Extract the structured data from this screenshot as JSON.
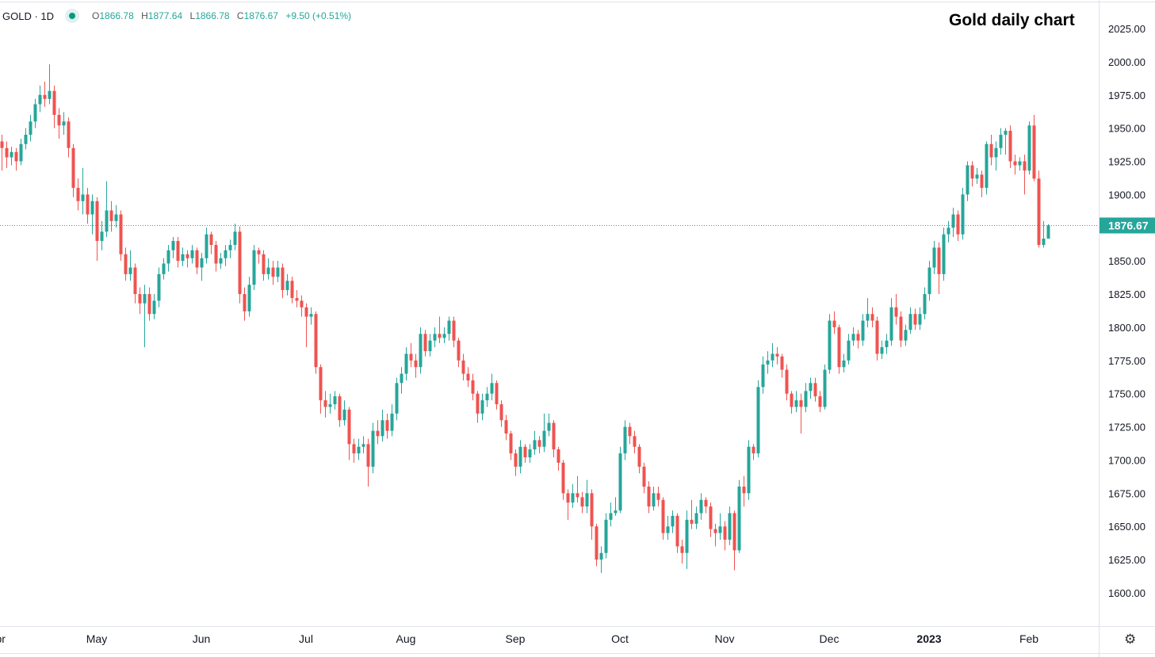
{
  "legend": {
    "symbol": "GOLD · 1D",
    "open": "1866.78",
    "high": "1877.64",
    "low": "1866.78",
    "close": "1876.67",
    "change": "+9.50 (+0.51%)",
    "open_label": "O",
    "high_label": "H",
    "low_label": "L",
    "close_label": "C"
  },
  "title": "Gold daily chart",
  "settings_icon": "gear-icon",
  "colors": {
    "up": "#26a69a",
    "down": "#ef5350",
    "price_line": "#26a69a"
  },
  "chart_data": {
    "type": "candlestick",
    "title": "Gold daily chart",
    "ylim": [
      1580,
      2045
    ],
    "y_ticks": [
      1600,
      1625,
      1650,
      1675,
      1700,
      1725,
      1750,
      1775,
      1800,
      1825,
      1850,
      1875,
      1900,
      1925,
      1950,
      1975,
      2000,
      2025
    ],
    "x_ticks": [
      {
        "label": "Apr",
        "index": -1
      },
      {
        "label": "May",
        "index": 20
      },
      {
        "label": "Jun",
        "index": 42
      },
      {
        "label": "Jul",
        "index": 64
      },
      {
        "label": "Aug",
        "index": 85
      },
      {
        "label": "Sep",
        "index": 108
      },
      {
        "label": "Oct",
        "index": 130
      },
      {
        "label": "Nov",
        "index": 152
      },
      {
        "label": "Dec",
        "index": 174
      },
      {
        "label": "2023",
        "index": 195,
        "bold": true
      },
      {
        "label": "Feb",
        "index": 216
      }
    ],
    "last_price": 1876.67,
    "last_price_label": "1876.67",
    "grid": false,
    "candles_ohlc": [
      [
        1940,
        1945,
        1918,
        1935
      ],
      [
        1935,
        1940,
        1920,
        1928
      ],
      [
        1928,
        1936,
        1922,
        1932
      ],
      [
        1932,
        1935,
        1918,
        1925
      ],
      [
        1925,
        1942,
        1922,
        1938
      ],
      [
        1938,
        1950,
        1934,
        1945
      ],
      [
        1945,
        1960,
        1940,
        1955
      ],
      [
        1955,
        1972,
        1950,
        1968
      ],
      [
        1968,
        1982,
        1962,
        1975
      ],
      [
        1975,
        1985,
        1966,
        1972
      ],
      [
        1972,
        1998,
        1968,
        1978
      ],
      [
        1978,
        1982,
        1950,
        1960
      ],
      [
        1960,
        1965,
        1942,
        1952
      ],
      [
        1952,
        1962,
        1945,
        1955
      ],
      [
        1955,
        1958,
        1928,
        1935
      ],
      [
        1935,
        1938,
        1898,
        1905
      ],
      [
        1905,
        1912,
        1888,
        1895
      ],
      [
        1895,
        1920,
        1885,
        1900
      ],
      [
        1900,
        1905,
        1878,
        1885
      ],
      [
        1885,
        1900,
        1870,
        1895
      ],
      [
        1895,
        1898,
        1850,
        1865
      ],
      [
        1865,
        1880,
        1858,
        1872
      ],
      [
        1872,
        1910,
        1868,
        1888
      ],
      [
        1888,
        1895,
        1872,
        1880
      ],
      [
        1880,
        1892,
        1875,
        1885
      ],
      [
        1885,
        1888,
        1850,
        1855
      ],
      [
        1855,
        1860,
        1835,
        1840
      ],
      [
        1840,
        1858,
        1835,
        1845
      ],
      [
        1845,
        1848,
        1818,
        1825
      ],
      [
        1825,
        1830,
        1810,
        1818
      ],
      [
        1818,
        1832,
        1785,
        1825
      ],
      [
        1825,
        1830,
        1805,
        1810
      ],
      [
        1810,
        1825,
        1806,
        1820
      ],
      [
        1820,
        1845,
        1815,
        1840
      ],
      [
        1840,
        1852,
        1836,
        1848
      ],
      [
        1848,
        1862,
        1842,
        1858
      ],
      [
        1858,
        1868,
        1852,
        1865
      ],
      [
        1865,
        1868,
        1845,
        1850
      ],
      [
        1850,
        1860,
        1846,
        1855
      ],
      [
        1855,
        1858,
        1845,
        1852
      ],
      [
        1852,
        1862,
        1848,
        1858
      ],
      [
        1858,
        1860,
        1840,
        1845
      ],
      [
        1845,
        1856,
        1835,
        1852
      ],
      [
        1852,
        1875,
        1848,
        1870
      ],
      [
        1870,
        1872,
        1855,
        1862
      ],
      [
        1862,
        1865,
        1842,
        1848
      ],
      [
        1848,
        1856,
        1844,
        1852
      ],
      [
        1852,
        1862,
        1846,
        1858
      ],
      [
        1858,
        1866,
        1852,
        1862
      ],
      [
        1862,
        1878,
        1858,
        1872
      ],
      [
        1872,
        1876,
        1818,
        1825
      ],
      [
        1825,
        1830,
        1805,
        1812
      ],
      [
        1812,
        1838,
        1808,
        1832
      ],
      [
        1832,
        1862,
        1828,
        1858
      ],
      [
        1858,
        1860,
        1848,
        1855
      ],
      [
        1855,
        1858,
        1835,
        1840
      ],
      [
        1840,
        1852,
        1836,
        1845
      ],
      [
        1845,
        1850,
        1832,
        1838
      ],
      [
        1838,
        1850,
        1834,
        1845
      ],
      [
        1845,
        1848,
        1822,
        1828
      ],
      [
        1828,
        1840,
        1824,
        1835
      ],
      [
        1835,
        1838,
        1818,
        1822
      ],
      [
        1822,
        1828,
        1815,
        1820
      ],
      [
        1820,
        1824,
        1808,
        1815
      ],
      [
        1815,
        1818,
        1785,
        1808
      ],
      [
        1808,
        1815,
        1802,
        1810
      ],
      [
        1810,
        1812,
        1765,
        1770
      ],
      [
        1770,
        1772,
        1735,
        1745
      ],
      [
        1745,
        1752,
        1732,
        1740
      ],
      [
        1740,
        1750,
        1735,
        1742
      ],
      [
        1742,
        1752,
        1738,
        1748
      ],
      [
        1748,
        1750,
        1725,
        1730
      ],
      [
        1730,
        1745,
        1726,
        1738
      ],
      [
        1738,
        1740,
        1700,
        1712
      ],
      [
        1712,
        1716,
        1698,
        1705
      ],
      [
        1705,
        1716,
        1700,
        1710
      ],
      [
        1710,
        1718,
        1705,
        1712
      ],
      [
        1712,
        1716,
        1680,
        1695
      ],
      [
        1695,
        1728,
        1690,
        1722
      ],
      [
        1722,
        1730,
        1712,
        1718
      ],
      [
        1718,
        1738,
        1714,
        1730
      ],
      [
        1730,
        1735,
        1716,
        1722
      ],
      [
        1722,
        1742,
        1718,
        1735
      ],
      [
        1735,
        1762,
        1730,
        1758
      ],
      [
        1758,
        1770,
        1750,
        1765
      ],
      [
        1765,
        1785,
        1760,
        1780
      ],
      [
        1780,
        1788,
        1770,
        1775
      ],
      [
        1775,
        1780,
        1762,
        1770
      ],
      [
        1770,
        1800,
        1765,
        1795
      ],
      [
        1795,
        1798,
        1778,
        1782
      ],
      [
        1782,
        1795,
        1778,
        1790
      ],
      [
        1790,
        1800,
        1785,
        1795
      ],
      [
        1795,
        1808,
        1788,
        1792
      ],
      [
        1792,
        1800,
        1788,
        1795
      ],
      [
        1795,
        1808,
        1790,
        1805
      ],
      [
        1805,
        1808,
        1785,
        1790
      ],
      [
        1790,
        1792,
        1770,
        1775
      ],
      [
        1775,
        1780,
        1760,
        1765
      ],
      [
        1765,
        1770,
        1755,
        1760
      ],
      [
        1760,
        1765,
        1745,
        1750
      ],
      [
        1750,
        1752,
        1728,
        1735
      ],
      [
        1735,
        1750,
        1730,
        1745
      ],
      [
        1745,
        1755,
        1740,
        1750
      ],
      [
        1750,
        1765,
        1745,
        1758
      ],
      [
        1758,
        1760,
        1738,
        1742
      ],
      [
        1742,
        1745,
        1725,
        1730
      ],
      [
        1730,
        1734,
        1715,
        1720
      ],
      [
        1720,
        1722,
        1700,
        1705
      ],
      [
        1705,
        1708,
        1688,
        1695
      ],
      [
        1695,
        1715,
        1690,
        1710
      ],
      [
        1710,
        1712,
        1698,
        1702
      ],
      [
        1702,
        1712,
        1698,
        1708
      ],
      [
        1708,
        1722,
        1704,
        1715
      ],
      [
        1715,
        1718,
        1705,
        1710
      ],
      [
        1710,
        1735,
        1706,
        1722
      ],
      [
        1722,
        1735,
        1718,
        1728
      ],
      [
        1728,
        1730,
        1702,
        1708
      ],
      [
        1708,
        1710,
        1692,
        1698
      ],
      [
        1698,
        1700,
        1670,
        1675
      ],
      [
        1675,
        1678,
        1655,
        1668
      ],
      [
        1668,
        1682,
        1664,
        1675
      ],
      [
        1675,
        1688,
        1668,
        1672
      ],
      [
        1672,
        1676,
        1660,
        1665
      ],
      [
        1665,
        1685,
        1660,
        1675
      ],
      [
        1675,
        1678,
        1640,
        1650
      ],
      [
        1650,
        1652,
        1620,
        1625
      ],
      [
        1625,
        1635,
        1615,
        1630
      ],
      [
        1630,
        1660,
        1626,
        1655
      ],
      [
        1655,
        1668,
        1650,
        1660
      ],
      [
        1660,
        1672,
        1658,
        1662
      ],
      [
        1662,
        1710,
        1660,
        1705
      ],
      [
        1705,
        1730,
        1700,
        1725
      ],
      [
        1725,
        1728,
        1712,
        1718
      ],
      [
        1718,
        1722,
        1705,
        1710
      ],
      [
        1710,
        1712,
        1690,
        1695
      ],
      [
        1695,
        1698,
        1675,
        1680
      ],
      [
        1680,
        1684,
        1660,
        1665
      ],
      [
        1665,
        1680,
        1662,
        1675
      ],
      [
        1675,
        1680,
        1665,
        1670
      ],
      [
        1670,
        1672,
        1640,
        1645
      ],
      [
        1645,
        1658,
        1640,
        1650
      ],
      [
        1650,
        1662,
        1645,
        1658
      ],
      [
        1658,
        1660,
        1630,
        1635
      ],
      [
        1635,
        1640,
        1622,
        1630
      ],
      [
        1630,
        1662,
        1618,
        1655
      ],
      [
        1655,
        1670,
        1648,
        1652
      ],
      [
        1652,
        1665,
        1648,
        1660
      ],
      [
        1660,
        1675,
        1655,
        1670
      ],
      [
        1670,
        1672,
        1660,
        1665
      ],
      [
        1665,
        1668,
        1642,
        1648
      ],
      [
        1648,
        1652,
        1635,
        1645
      ],
      [
        1645,
        1660,
        1640,
        1650
      ],
      [
        1650,
        1654,
        1632,
        1640
      ],
      [
        1640,
        1665,
        1636,
        1660
      ],
      [
        1660,
        1662,
        1617,
        1632
      ],
      [
        1632,
        1685,
        1630,
        1680
      ],
      [
        1680,
        1688,
        1665,
        1675
      ],
      [
        1675,
        1715,
        1670,
        1710
      ],
      [
        1710,
        1712,
        1700,
        1705
      ],
      [
        1705,
        1760,
        1702,
        1755
      ],
      [
        1755,
        1778,
        1750,
        1772
      ],
      [
        1772,
        1782,
        1765,
        1775
      ],
      [
        1775,
        1788,
        1770,
        1780
      ],
      [
        1780,
        1785,
        1772,
        1778
      ],
      [
        1778,
        1780,
        1762,
        1768
      ],
      [
        1768,
        1772,
        1745,
        1750
      ],
      [
        1750,
        1752,
        1735,
        1740
      ],
      [
        1740,
        1752,
        1736,
        1745
      ],
      [
        1745,
        1750,
        1720,
        1740
      ],
      [
        1740,
        1758,
        1736,
        1752
      ],
      [
        1752,
        1762,
        1746,
        1758
      ],
      [
        1758,
        1762,
        1744,
        1748
      ],
      [
        1748,
        1752,
        1736,
        1740
      ],
      [
        1740,
        1772,
        1738,
        1768
      ],
      [
        1768,
        1810,
        1765,
        1805
      ],
      [
        1805,
        1812,
        1795,
        1800
      ],
      [
        1800,
        1802,
        1765,
        1770
      ],
      [
        1770,
        1780,
        1766,
        1775
      ],
      [
        1775,
        1795,
        1772,
        1790
      ],
      [
        1790,
        1800,
        1786,
        1795
      ],
      [
        1795,
        1798,
        1784,
        1790
      ],
      [
        1790,
        1810,
        1786,
        1805
      ],
      [
        1805,
        1822,
        1800,
        1810
      ],
      [
        1810,
        1815,
        1800,
        1805
      ],
      [
        1805,
        1808,
        1775,
        1780
      ],
      [
        1780,
        1790,
        1776,
        1785
      ],
      [
        1785,
        1795,
        1780,
        1790
      ],
      [
        1790,
        1822,
        1786,
        1815
      ],
      [
        1815,
        1825,
        1802,
        1808
      ],
      [
        1808,
        1812,
        1785,
        1790
      ],
      [
        1790,
        1802,
        1786,
        1798
      ],
      [
        1798,
        1815,
        1795,
        1810
      ],
      [
        1810,
        1814,
        1798,
        1802
      ],
      [
        1802,
        1815,
        1798,
        1810
      ],
      [
        1810,
        1830,
        1806,
        1825
      ],
      [
        1825,
        1850,
        1820,
        1845
      ],
      [
        1845,
        1865,
        1840,
        1860
      ],
      [
        1860,
        1864,
        1825,
        1840
      ],
      [
        1840,
        1875,
        1835,
        1870
      ],
      [
        1870,
        1880,
        1864,
        1875
      ],
      [
        1875,
        1890,
        1868,
        1885
      ],
      [
        1885,
        1888,
        1865,
        1870
      ],
      [
        1870,
        1905,
        1866,
        1900
      ],
      [
        1900,
        1925,
        1895,
        1922
      ],
      [
        1922,
        1925,
        1906,
        1912
      ],
      [
        1912,
        1920,
        1908,
        1915
      ],
      [
        1915,
        1918,
        1898,
        1905
      ],
      [
        1905,
        1940,
        1900,
        1938
      ],
      [
        1938,
        1945,
        1922,
        1928
      ],
      [
        1928,
        1940,
        1918,
        1935
      ],
      [
        1935,
        1950,
        1930,
        1945
      ],
      [
        1945,
        1950,
        1930,
        1948
      ],
      [
        1948,
        1952,
        1920,
        1925
      ],
      [
        1925,
        1930,
        1915,
        1922
      ],
      [
        1922,
        1928,
        1918,
        1925
      ],
      [
        1925,
        1930,
        1900,
        1918
      ],
      [
        1918,
        1955,
        1915,
        1952
      ],
      [
        1952,
        1960,
        1910,
        1912
      ],
      [
        1912,
        1918,
        1860,
        1862
      ],
      [
        1862,
        1880,
        1860,
        1866.78
      ],
      [
        1866.78,
        1877.64,
        1866.78,
        1876.67
      ]
    ]
  }
}
